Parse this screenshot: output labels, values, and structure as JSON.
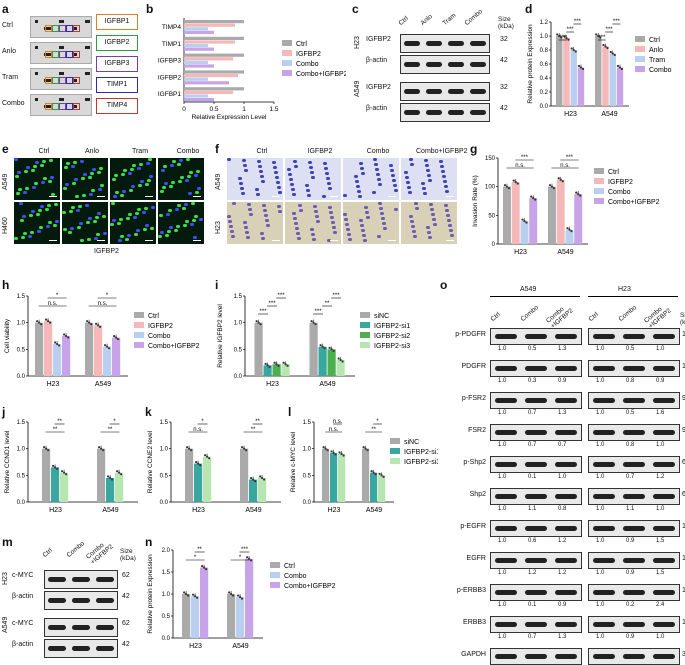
{
  "panels": {
    "a": {
      "letter": "a",
      "rows": [
        "Ctrl",
        "Anlo",
        "Tram",
        "Combo"
      ],
      "genes": [
        {
          "name": "IGFBP1",
          "color": "#e67e22"
        },
        {
          "name": "IGFBP2",
          "color": "#2e9e44"
        },
        {
          "name": "IGFBP3",
          "color": "#7b3fa0"
        },
        {
          "name": "TIMP1",
          "color": "#2b2bb5"
        },
        {
          "name": "TIMP4",
          "color": "#c0392b"
        }
      ]
    },
    "b": {
      "letter": "b"
    },
    "c": {
      "letter": "c",
      "lanes": [
        "Ctrl",
        "Anlo",
        "Tram",
        "Combo"
      ],
      "size_header": "Size\n(kDa)",
      "cells": [
        "H23",
        "A549"
      ],
      "rows": [
        {
          "label": "IGFBP2",
          "size": "32"
        },
        {
          "label": "β-actin",
          "size": "42"
        },
        {
          "label": "IGFBP2",
          "size": "32"
        },
        {
          "label": "β-actin",
          "size": "42"
        }
      ]
    },
    "d": {
      "letter": "d"
    },
    "e": {
      "letter": "e",
      "cols": [
        "Ctrl",
        "Anlo",
        "Tram",
        "Combo"
      ],
      "rows": [
        "A549",
        "H460"
      ],
      "caption": "IGFBP2"
    },
    "f": {
      "letter": "f",
      "cols": [
        "Ctrl",
        "IGFBP2",
        "Combo",
        "Combo+IGFBP2"
      ],
      "rows": [
        "A549",
        "H23"
      ]
    },
    "g": {
      "letter": "g"
    },
    "h": {
      "letter": "h"
    },
    "i": {
      "letter": "i"
    },
    "j": {
      "letter": "j"
    },
    "k": {
      "letter": "k"
    },
    "l": {
      "letter": "l"
    },
    "m": {
      "letter": "m",
      "lanes": [
        "Ctrl",
        "Combo",
        "Combo\n+IGFBP2"
      ],
      "size_header": "Size\n(kDa)",
      "cells": [
        "H23",
        "A549"
      ],
      "rows": [
        {
          "label": "c-MYC",
          "size": "62"
        },
        {
          "label": "β-actin",
          "size": "42"
        },
        {
          "label": "c-MYC",
          "size": "62"
        },
        {
          "label": "β-actin",
          "size": "42"
        }
      ]
    },
    "n": {
      "letter": "n"
    },
    "o": {
      "letter": "o",
      "cells": [
        "A549",
        "H23"
      ],
      "lanes": [
        "Ctrl",
        "Combo",
        "Combo\n+IGFBP2"
      ],
      "size_header": "Size\n(kDa)",
      "rows": [
        {
          "label": "p-PDGFR",
          "size": "150",
          "a549": [
            "1.0",
            "0.5",
            "1.3"
          ],
          "h23": [
            "1.0",
            "0.5",
            "1.0"
          ]
        },
        {
          "label": "PDGFR",
          "size": "150",
          "a549": [
            "1.0",
            "0.3",
            "0.9"
          ],
          "h23": [
            "1.0",
            "0.8",
            "0.9"
          ]
        },
        {
          "label": "p-FSR2",
          "size": "90",
          "a549": [
            "1.0",
            "0.7",
            "1.3"
          ],
          "h23": [
            "1.0",
            "0.5",
            "1.6"
          ]
        },
        {
          "label": "FSR2",
          "size": "90",
          "a549": [
            "1.0",
            "0.7",
            "0.7"
          ],
          "h23": [
            "1.0",
            "0.8",
            "1.0"
          ]
        },
        {
          "label": "p-Shp2",
          "size": "66",
          "a549": [
            "1.0",
            "0.1",
            "1.0"
          ],
          "h23": [
            "1.0",
            "0.7",
            "1.2"
          ]
        },
        {
          "label": "Shp2",
          "size": "66",
          "a549": [
            "1.0",
            "1.1",
            "0.8"
          ],
          "h23": [
            "1.0",
            "1.1",
            "1.0"
          ]
        },
        {
          "label": "p-EGFR",
          "size": "170",
          "a549": [
            "1.0",
            "0.6",
            "1.2"
          ],
          "h23": [
            "1.0",
            "0.9",
            "1.5"
          ]
        },
        {
          "label": "EGFR",
          "size": "170",
          "a549": [
            "1.0",
            "1.2",
            "1.2"
          ],
          "h23": [
            "1.0",
            "0.9",
            "1.5"
          ]
        },
        {
          "label": "p-ERBB3",
          "size": "150",
          "a549": [
            "1.0",
            "0.1",
            "0.9"
          ],
          "h23": [
            "1.0",
            "0.2",
            "2.4"
          ]
        },
        {
          "label": "ERBB3",
          "size": "150",
          "a549": [
            "1.0",
            "0.7",
            "1.3"
          ],
          "h23": [
            "1.0",
            "0.9",
            "1.0"
          ]
        },
        {
          "label": "GAPDH",
          "size": "36",
          "a549": [],
          "h23": []
        }
      ]
    }
  },
  "chart_data": [
    {
      "id": "b",
      "type": "bar",
      "orientation": "horizontal",
      "categories": [
        "TIMP4",
        "TIMP1",
        "IGFBP3",
        "IGFBP2",
        "IGFBP1"
      ],
      "series": [
        {
          "name": "Ctrl",
          "color": "#aaaaaa",
          "values": [
            1.0,
            1.0,
            1.0,
            1.0,
            1.0
          ]
        },
        {
          "name": "IGFBP2",
          "color": "#f4b8b8",
          "values": [
            0.85,
            0.85,
            0.82,
            0.9,
            0.82
          ]
        },
        {
          "name": "Combo",
          "color": "#b9cff0",
          "values": [
            0.4,
            0.4,
            0.4,
            0.4,
            0.4
          ]
        },
        {
          "name": "Combo+IGFBP2",
          "color": "#c7a4e8",
          "values": [
            0.5,
            0.5,
            0.5,
            0.75,
            0.5
          ]
        }
      ],
      "xlabel": "Relative Expression Level",
      "xlim": [
        0,
        1.5
      ],
      "xticks": [
        "0",
        "0.5",
        "1",
        "1.5"
      ]
    },
    {
      "id": "d",
      "type": "bar",
      "groups": [
        "H23",
        "A549"
      ],
      "series": [
        {
          "name": "Ctrl",
          "color": "#aaaaaa",
          "values": [
            1.0,
            1.0
          ]
        },
        {
          "name": "Anlo",
          "color": "#f4b8b8",
          "values": [
            0.97,
            0.85
          ]
        },
        {
          "name": "Tram",
          "color": "#b9cff0",
          "values": [
            0.8,
            0.75
          ]
        },
        {
          "name": "Combo",
          "color": "#c7a4e8",
          "values": [
            0.55,
            0.55
          ]
        }
      ],
      "ylabel": "Relative protein Expression",
      "ylim": [
        0,
        1.2
      ],
      "yticks": [
        "0.0",
        "0.2",
        "0.4",
        "0.6",
        "0.8",
        "1.0",
        "1.2"
      ],
      "annotations": [
        "***",
        "***",
        "***",
        "***",
        "***",
        "***"
      ]
    },
    {
      "id": "g",
      "type": "bar",
      "groups": [
        "H23",
        "A549"
      ],
      "series": [
        {
          "name": "Ctrl",
          "color": "#aaaaaa",
          "values": [
            100,
            100
          ]
        },
        {
          "name": "IGFBP2",
          "color": "#f4b8b8",
          "values": [
            108,
            112
          ]
        },
        {
          "name": "Combo",
          "color": "#b9cff0",
          "values": [
            40,
            25
          ]
        },
        {
          "name": "Combo+IGFBP2",
          "color": "#c7a4e8",
          "values": [
            80,
            87
          ]
        }
      ],
      "ylabel": "Invasion Rate (%)",
      "ylim": [
        0,
        150
      ],
      "yticks": [
        "0",
        "50",
        "100",
        "150"
      ],
      "annotations": [
        "n.s.",
        "***",
        "n.s.",
        "***"
      ]
    },
    {
      "id": "h",
      "type": "bar",
      "groups": [
        "H23",
        "A549"
      ],
      "series": [
        {
          "name": "Ctrl",
          "color": "#aaaaaa",
          "values": [
            1.0,
            1.0
          ]
        },
        {
          "name": "IGFBP2",
          "color": "#f4b8b8",
          "values": [
            1.03,
            0.95
          ]
        },
        {
          "name": "Combo",
          "color": "#b9cff0",
          "values": [
            0.6,
            0.55
          ]
        },
        {
          "name": "Combo+IGFBP2",
          "color": "#c7a4e8",
          "values": [
            0.75,
            0.72
          ]
        }
      ],
      "ylabel": "Cell viability",
      "ylim": [
        0,
        1.5
      ],
      "yticks": [
        "0.0",
        "0.5",
        "1.0",
        "1.5"
      ],
      "annotations": [
        "n.s.",
        "*",
        "n.s.",
        "*"
      ]
    },
    {
      "id": "i",
      "type": "bar",
      "groups": [
        "H23",
        "A549"
      ],
      "series": [
        {
          "name": "siNC",
          "color": "#aaaaaa",
          "values": [
            1.0,
            1.0
          ]
        },
        {
          "name": "IGFBP2-si1",
          "color": "#3aa6a0",
          "values": [
            0.2,
            0.55
          ]
        },
        {
          "name": "IGFBP2-si2",
          "color": "#4caf50",
          "values": [
            0.22,
            0.5
          ]
        },
        {
          "name": "IGFBP2-si3",
          "color": "#b8e6b0",
          "values": [
            0.22,
            0.3
          ]
        }
      ],
      "ylabel": "Relative IGFBP2 level",
      "ylim": [
        0,
        1.5
      ],
      "yticks": [
        "0.0",
        "0.5",
        "1.0",
        "1.5"
      ],
      "annotations": [
        "***",
        "***",
        "***",
        "***",
        "**",
        "***"
      ]
    },
    {
      "id": "j",
      "type": "bar",
      "groups": [
        "H23",
        "A549"
      ],
      "series": [
        {
          "name": "Ctrl",
          "color": "#aaaaaa",
          "values": [
            1.0,
            1.0
          ]
        },
        {
          "name": "Combo",
          "color": "#3aa6a0",
          "values": [
            0.65,
            0.45
          ]
        },
        {
          "name": "Combo+IGFBP2",
          "color": "#b8e6b0",
          "values": [
            0.55,
            0.55
          ]
        }
      ],
      "ylabel": "Relative CCND1 level",
      "ylim": [
        0,
        1.5
      ],
      "yticks": [
        "0.0",
        "0.5",
        "1.0",
        "1.5"
      ],
      "annotations": [
        "**",
        "**",
        "**",
        "*"
      ]
    },
    {
      "id": "k",
      "type": "bar",
      "groups": [
        "H23",
        "A549"
      ],
      "series": [
        {
          "name": "Ctrl",
          "color": "#aaaaaa",
          "values": [
            1.0,
            1.0
          ]
        },
        {
          "name": "Combo",
          "color": "#3aa6a0",
          "values": [
            0.72,
            0.42
          ]
        },
        {
          "name": "Combo+IGFBP2",
          "color": "#b8e6b0",
          "values": [
            0.85,
            0.45
          ]
        }
      ],
      "ylabel": "Relative CCNE2 level",
      "ylim": [
        0,
        1.5
      ],
      "yticks": [
        "0.0",
        "0.5",
        "1.0",
        "1.5"
      ],
      "annotations": [
        "n.s.",
        "*",
        "**",
        "**"
      ]
    },
    {
      "id": "l",
      "type": "bar",
      "groups": [
        "H23",
        "A549"
      ],
      "series": [
        {
          "name": "siNC",
          "color": "#aaaaaa",
          "values": [
            1.0,
            1.0
          ]
        },
        {
          "name": "IGFBP2-si1",
          "color": "#3aa6a0",
          "values": [
            0.92,
            0.55
          ]
        },
        {
          "name": "IGFBP2-si3",
          "color": "#b8e6b0",
          "values": [
            0.9,
            0.5
          ]
        }
      ],
      "ylabel": "Relative c-MYC level",
      "ylim": [
        0,
        1.5
      ],
      "yticks": [
        "0.0",
        "0.5",
        "1.0",
        "1.5"
      ],
      "annotations": [
        "n.s.",
        "n.s.",
        "**",
        "*"
      ]
    },
    {
      "id": "n",
      "type": "bar",
      "groups": [
        "H23",
        "A549"
      ],
      "series": [
        {
          "name": "Ctrl",
          "color": "#aaaaaa",
          "values": [
            1.0,
            1.0
          ]
        },
        {
          "name": "Combo",
          "color": "#b9cff0",
          "values": [
            0.95,
            0.93
          ]
        },
        {
          "name": "Combo+IGFBP2",
          "color": "#c7a4e8",
          "values": [
            1.6,
            1.8
          ]
        }
      ],
      "ylabel": "Relative protein Expression",
      "ylim": [
        0,
        2.0
      ],
      "yticks": [
        "0.0",
        "0.5",
        "1.0",
        "1.5",
        "2.0"
      ],
      "annotations": [
        "*",
        "**",
        "*",
        "***"
      ]
    }
  ]
}
